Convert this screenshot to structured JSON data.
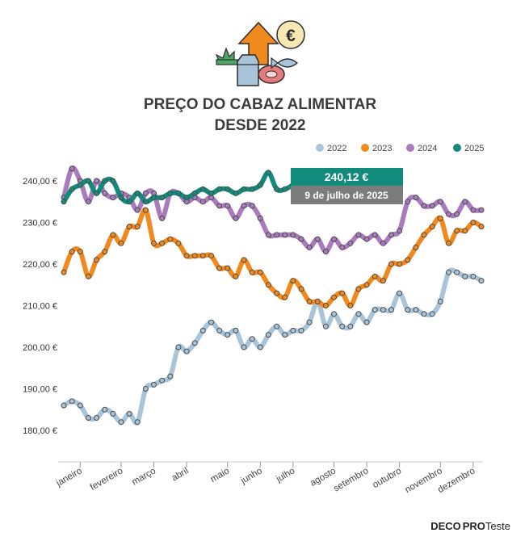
{
  "title_line1": "PREÇO DO CABAZ ALIMENTAR",
  "title_line2": "DESDE 2022",
  "brand": {
    "part1": "DECO",
    "part2": "PRO",
    "part3": "Teste"
  },
  "callout": {
    "value": "240,12 €",
    "date": "9  de julho de 2025"
  },
  "colors": {
    "2022": "#a9c4d8",
    "2023": "#f08a1f",
    "2024": "#a97bbd",
    "2025": "#138b7c"
  },
  "icons": [
    "arrow-up-icon",
    "euro-coin-icon",
    "vegetables-icon",
    "milk-carton-icon",
    "meat-icon",
    "fish-icon"
  ],
  "chart_data": {
    "type": "line",
    "x_unit": "week of year",
    "x_tick_weeks": [
      2,
      7,
      11,
      15,
      20,
      24,
      28,
      33,
      37,
      41,
      46,
      50
    ],
    "months": [
      "janeiro",
      "fevereiro",
      "março",
      "abril",
      "maio",
      "junho",
      "julho",
      "agosto",
      "setembro",
      "outubro",
      "novembro",
      "dezembro"
    ],
    "ylim": [
      180,
      240
    ],
    "y_ticks": [
      180,
      190,
      200,
      210,
      220,
      230,
      240
    ],
    "y_tick_labels": [
      "180,00 €",
      "190,00 €",
      "200,00 €",
      "210,00 €",
      "220,00 €",
      "230,00 €",
      "240,00 €"
    ],
    "legend_position": "top-right",
    "series": [
      {
        "name": "2022",
        "points": [
          [
            0,
            186
          ],
          [
            1,
            187
          ],
          [
            2,
            186
          ],
          [
            3,
            183
          ],
          [
            4,
            183
          ],
          [
            5,
            185
          ],
          [
            6,
            184
          ],
          [
            7,
            182
          ],
          [
            8,
            184
          ],
          [
            9,
            182
          ],
          [
            10,
            190
          ],
          [
            11,
            191
          ],
          [
            12,
            192
          ],
          [
            13,
            193
          ],
          [
            14,
            200
          ],
          [
            15,
            199
          ],
          [
            16,
            201
          ],
          [
            17,
            204
          ],
          [
            18,
            206
          ],
          [
            19,
            204
          ],
          [
            20,
            203
          ],
          [
            21,
            204
          ],
          [
            22,
            200
          ],
          [
            23,
            202
          ],
          [
            24,
            200
          ],
          [
            25,
            203
          ],
          [
            26,
            205
          ],
          [
            27,
            203
          ],
          [
            28,
            204
          ],
          [
            29,
            204
          ],
          [
            30,
            206
          ],
          [
            31,
            211
          ],
          [
            32,
            205
          ],
          [
            33,
            208
          ],
          [
            34,
            205
          ],
          [
            35,
            205
          ],
          [
            36,
            208
          ],
          [
            37,
            206
          ],
          [
            38,
            209
          ],
          [
            39,
            209
          ],
          [
            40,
            209
          ],
          [
            41,
            213
          ],
          [
            42,
            209
          ],
          [
            43,
            209
          ],
          [
            44,
            208
          ],
          [
            45,
            208
          ],
          [
            46,
            211
          ],
          [
            47,
            218
          ],
          [
            48,
            218
          ],
          [
            49,
            217
          ],
          [
            50,
            217
          ],
          [
            51,
            216
          ]
        ]
      },
      {
        "name": "2023",
        "points": [
          [
            0,
            218
          ],
          [
            1,
            223
          ],
          [
            2,
            223
          ],
          [
            3,
            217
          ],
          [
            4,
            221
          ],
          [
            5,
            223
          ],
          [
            6,
            227
          ],
          [
            7,
            225
          ],
          [
            8,
            229
          ],
          [
            9,
            229
          ],
          [
            10,
            233
          ],
          [
            11,
            225
          ],
          [
            12,
            225
          ],
          [
            13,
            226
          ],
          [
            14,
            225
          ],
          [
            15,
            222
          ],
          [
            16,
            222
          ],
          [
            17,
            222
          ],
          [
            18,
            222
          ],
          [
            19,
            219
          ],
          [
            20,
            219
          ],
          [
            21,
            217
          ],
          [
            22,
            221
          ],
          [
            23,
            218
          ],
          [
            24,
            218
          ],
          [
            25,
            215
          ],
          [
            26,
            213
          ],
          [
            27,
            212
          ],
          [
            28,
            216
          ],
          [
            29,
            214
          ],
          [
            30,
            211
          ],
          [
            31,
            211
          ],
          [
            32,
            210
          ],
          [
            33,
            212
          ],
          [
            34,
            213
          ],
          [
            35,
            210
          ],
          [
            36,
            214
          ],
          [
            37,
            215
          ],
          [
            38,
            217
          ],
          [
            39,
            216
          ],
          [
            40,
            220
          ],
          [
            41,
            220
          ],
          [
            42,
            221
          ],
          [
            43,
            224
          ],
          [
            44,
            227
          ],
          [
            45,
            229
          ],
          [
            46,
            231
          ],
          [
            47,
            225
          ],
          [
            48,
            228
          ],
          [
            49,
            228
          ],
          [
            50,
            230
          ],
          [
            51,
            229
          ]
        ]
      },
      {
        "name": "2024",
        "points": [
          [
            0,
            236
          ],
          [
            1,
            243
          ],
          [
            2,
            240
          ],
          [
            3,
            235
          ],
          [
            4,
            240
          ],
          [
            5,
            237
          ],
          [
            6,
            236
          ],
          [
            7,
            237
          ],
          [
            8,
            236
          ],
          [
            9,
            233
          ],
          [
            10,
            237
          ],
          [
            11,
            237
          ],
          [
            12,
            231
          ],
          [
            13,
            237
          ],
          [
            14,
            237
          ],
          [
            15,
            235
          ],
          [
            16,
            236
          ],
          [
            17,
            235
          ],
          [
            18,
            236
          ],
          [
            19,
            234
          ],
          [
            20,
            234
          ],
          [
            21,
            231
          ],
          [
            22,
            234
          ],
          [
            23,
            234
          ],
          [
            24,
            231
          ],
          [
            25,
            227
          ],
          [
            26,
            227
          ],
          [
            27,
            227
          ],
          [
            28,
            227
          ],
          [
            29,
            226
          ],
          [
            30,
            224
          ],
          [
            31,
            226
          ],
          [
            32,
            223
          ],
          [
            33,
            226
          ],
          [
            34,
            224
          ],
          [
            35,
            225
          ],
          [
            36,
            227
          ],
          [
            37,
            226
          ],
          [
            38,
            227
          ],
          [
            39,
            225
          ],
          [
            40,
            227
          ],
          [
            41,
            228
          ],
          [
            42,
            235
          ],
          [
            43,
            236
          ],
          [
            44,
            234
          ],
          [
            45,
            234
          ],
          [
            46,
            235
          ],
          [
            47,
            232
          ],
          [
            48,
            232
          ],
          [
            49,
            235
          ],
          [
            50,
            233
          ],
          [
            51,
            233
          ]
        ]
      },
      {
        "name": "2025",
        "points": [
          [
            0,
            235
          ],
          [
            1,
            238
          ],
          [
            2,
            239
          ],
          [
            3,
            240
          ],
          [
            4,
            237
          ],
          [
            5,
            240
          ],
          [
            6,
            240
          ],
          [
            7,
            236
          ],
          [
            8,
            235
          ],
          [
            9,
            237
          ],
          [
            10,
            235
          ],
          [
            11,
            236
          ],
          [
            12,
            236
          ],
          [
            13,
            237
          ],
          [
            14,
            237
          ],
          [
            15,
            236
          ],
          [
            16,
            237
          ],
          [
            17,
            238
          ],
          [
            18,
            237
          ],
          [
            19,
            238
          ],
          [
            20,
            238
          ],
          [
            21,
            237
          ],
          [
            22,
            238
          ],
          [
            23,
            238
          ],
          [
            24,
            239
          ],
          [
            25,
            242
          ],
          [
            26,
            238
          ],
          [
            27,
            238
          ],
          [
            28,
            239
          ],
          [
            29,
            240.12
          ]
        ]
      }
    ]
  }
}
